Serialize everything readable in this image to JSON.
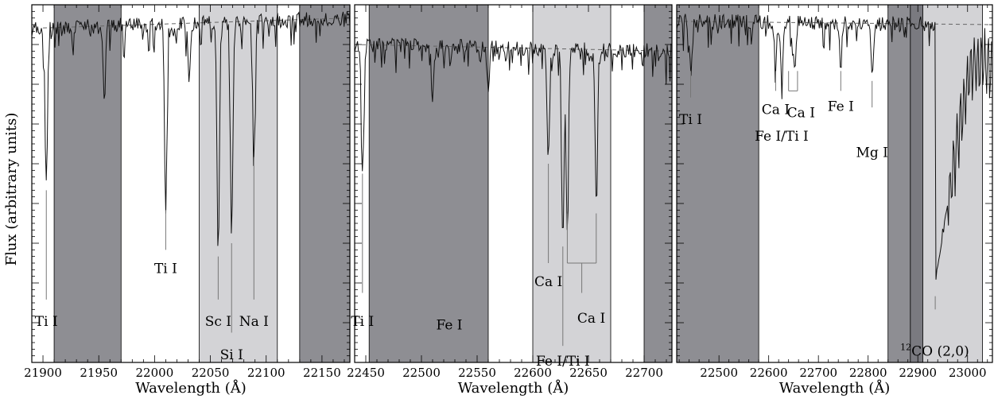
{
  "figure": {
    "ylabel": "Flux (arbitrary units)",
    "xlabel": "Wavelength (Å)"
  },
  "colors": {
    "dark_band": "#8e8e93",
    "light_band": "#d3d3d6",
    "spectrum": "#111111",
    "continuum": "#666666"
  },
  "chart_data": [
    {
      "type": "line",
      "xlabel": "Wavelength (Å)",
      "xlim": [
        21890,
        22175
      ],
      "ylim": [
        0,
        1.08
      ],
      "xticks": [
        21900,
        21950,
        22000,
        22050,
        22100,
        22150
      ],
      "bands": [
        {
          "x0": 21910,
          "x1": 21970,
          "shade": "dark"
        },
        {
          "x0": 22040,
          "x1": 22110,
          "shade": "light"
        },
        {
          "x0": 22130,
          "x1": 22175,
          "shade": "dark"
        }
      ],
      "continuum": {
        "x": [
          21900,
          22175
        ],
        "y": [
          1.01,
          1.04
        ]
      },
      "lines": [
        {
          "center": 21903,
          "depth": 0.53
        },
        {
          "center": 21955,
          "depth": 0.78
        },
        {
          "center": 22010,
          "depth": 0.47
        },
        {
          "center": 22031,
          "depth": 0.85
        },
        {
          "center": 22057,
          "depth": 0.33
        },
        {
          "center": 22069,
          "depth": 0.37
        },
        {
          "center": 22089,
          "depth": 0.63
        }
      ],
      "labels": [
        {
          "text": "Ti I",
          "x": 21903,
          "y_top": 0.52,
          "y_bot": 0.19,
          "text_y": 0.11
        },
        {
          "text": "Ti I",
          "x": 22010,
          "y_top": 0.46,
          "y_bot": 0.34,
          "text_y": 0.27
        },
        {
          "text": "Sc I",
          "x": 22057,
          "y_top": 0.32,
          "y_bot": 0.19,
          "text_y": 0.11
        },
        {
          "text": "Si I",
          "x": 22069,
          "y_top": 0.36,
          "y_bot": 0.09,
          "text_y": 0.01
        },
        {
          "text": "Na I",
          "x": 22089,
          "y_top": 0.62,
          "y_bot": 0.19,
          "text_y": 0.11
        }
      ]
    },
    {
      "type": "line",
      "xlabel": "Wavelength (Å)",
      "xlim": [
        22440,
        22725
      ],
      "ylim": [
        0,
        1.08
      ],
      "xticks": [
        22450,
        22500,
        22550,
        22600,
        22650,
        22700
      ],
      "bands": [
        {
          "x0": 22453,
          "x1": 22560,
          "shade": "dark"
        },
        {
          "x0": 22600,
          "x1": 22670,
          "shade": "light"
        },
        {
          "x0": 22700,
          "x1": 22725,
          "shade": "dark"
        }
      ],
      "continuum": {
        "x": [
          22440,
          22725
        ],
        "y": [
          0.96,
          0.94
        ]
      },
      "lines": [
        {
          "center": 22447,
          "depth": 0.58
        },
        {
          "center": 22510,
          "depth": 0.8
        },
        {
          "center": 22560,
          "depth": 0.82
        },
        {
          "center": 22614,
          "depth": 0.61
        },
        {
          "center": 22627,
          "depth": 0.36
        },
        {
          "center": 22631,
          "depth": 0.4
        },
        {
          "center": 22657,
          "depth": 0.49
        }
      ],
      "labels": [
        {
          "text": "Ti I",
          "x": 22447,
          "y_top": 0.57,
          "y_bot": 0.21,
          "text_y": 0.11
        },
        {
          "text": "Fe I",
          "x": 22525,
          "y_top": null,
          "y_bot": null,
          "text_y": 0.1
        },
        {
          "text": "Ca I",
          "x": 22614,
          "y_top": 0.6,
          "y_bot": 0.3,
          "text_y": 0.23
        },
        {
          "text": "Fe I/Ti I",
          "x": 22627,
          "y_top": 0.35,
          "y_bot": 0.05,
          "text_y": -0.01
        }
      ],
      "bracket": {
        "text": "Ca I",
        "x_left": 22631,
        "x_right": 22657,
        "y_top": 0.45,
        "y_bar": 0.3,
        "stem_bot": 0.21,
        "text_y": 0.12
      }
    },
    {
      "type": "line",
      "xlabel": "Wavelength (Å)",
      "xlim": [
        22415,
        23050
      ],
      "ylim": [
        0,
        1.08
      ],
      "xticks": [
        22500,
        22600,
        22700,
        22800,
        22900,
        23000
      ],
      "bands": [
        {
          "x0": 22415,
          "x1": 22580,
          "shade": "dark"
        },
        {
          "x0": 22840,
          "x1": 22885,
          "shade": "dark"
        },
        {
          "x0": 22885,
          "x1": 22910,
          "shade": "darker"
        },
        {
          "x0": 22910,
          "x1": 23030,
          "shade": "light"
        }
      ],
      "continuum": {
        "x": [
          22415,
          23050
        ],
        "y": [
          1.03,
          1.02
        ]
      },
      "lines": [
        {
          "center": 22443,
          "depth": 0.89
        },
        {
          "center": 22614,
          "depth": 0.9
        },
        {
          "center": 22626,
          "depth": 0.86
        },
        {
          "center": 22652,
          "depth": 0.87
        },
        {
          "center": 22745,
          "depth": 0.9
        },
        {
          "center": 22808,
          "depth": 0.86
        }
      ],
      "labels": [
        {
          "text": "Ti I",
          "x": 22443,
          "y_top": 0.88,
          "y_bot": 0.8,
          "text_y": 0.72
        },
        {
          "text": "Mg I",
          "x": 22808,
          "y_top": 0.85,
          "y_bot": 0.77,
          "text_y": 0.62
        },
        {
          "text": "Ca I",
          "x": 22614,
          "y_top": 0.88,
          "y_bot": 0.82,
          "text_y": 0.75
        },
        {
          "text": "Fe I/Ti I",
          "x": 22626,
          "y_top": null,
          "y_bot": null,
          "text_y": 0.67
        },
        {
          "text": "Ca I",
          "x": 22665,
          "y_top": null,
          "y_bot": null,
          "text_y": 0.74
        },
        {
          "text": "Fe I",
          "x": 22745,
          "y_top": 0.88,
          "y_bot": 0.82,
          "text_y": 0.76
        }
      ],
      "bracket": {
        "text": "",
        "x_left": 22640,
        "x_right": 22658,
        "y_top": 0.88,
        "y_bar": 0.82,
        "stem_bot": 0.82,
        "text_y": 0
      },
      "co_band": {
        "head": 22935,
        "depth": 0.25,
        "label": "CO (2,0)",
        "superscript": "12",
        "y_top": 0.2,
        "y_bot": 0.16,
        "text_y": 0.02
      }
    }
  ]
}
